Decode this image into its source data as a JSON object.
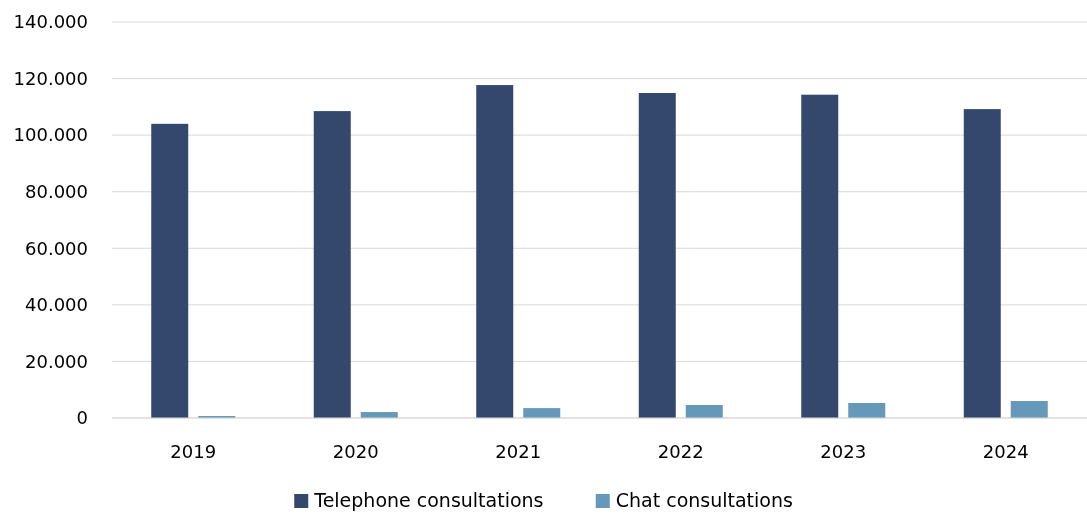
{
  "chart_data": {
    "type": "bar",
    "categories": [
      "2019",
      "2020",
      "2021",
      "2022",
      "2023",
      "2024"
    ],
    "series": [
      {
        "name": "Telephone consultations",
        "color": "#34476d",
        "values": [
          104000,
          108500,
          117700,
          114900,
          114300,
          109200
        ]
      },
      {
        "name": "Chat consultations",
        "color": "#6598b9",
        "values": [
          700,
          2100,
          3500,
          4600,
          5300,
          6000
        ]
      }
    ],
    "ylim": [
      0,
      140000
    ],
    "yticks": [
      {
        "value": 0,
        "label": "0"
      },
      {
        "value": 20000,
        "label": "20.000"
      },
      {
        "value": 40000,
        "label": "40.000"
      },
      {
        "value": 60000,
        "label": "60.000"
      },
      {
        "value": 80000,
        "label": "80.000"
      },
      {
        "value": 100000,
        "label": "100.000"
      },
      {
        "value": 120000,
        "label": "120.000"
      },
      {
        "value": 140000,
        "label": "140.000"
      }
    ],
    "grid": "y",
    "legend": "bottom"
  }
}
